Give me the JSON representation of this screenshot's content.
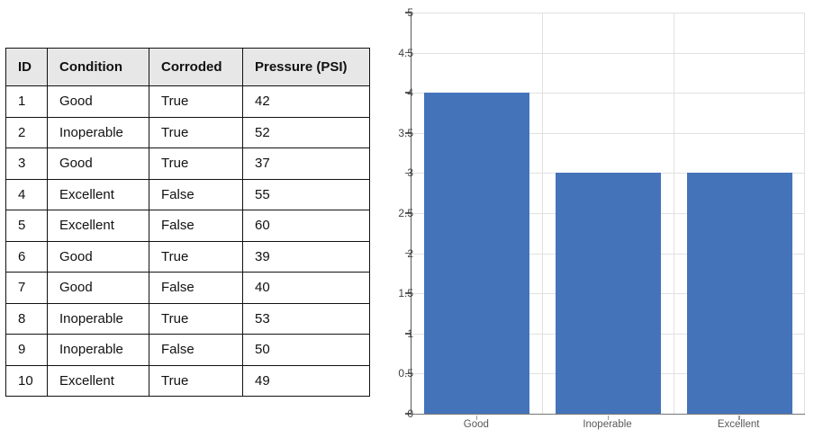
{
  "table": {
    "columns": [
      "ID",
      "Condition",
      "Corroded",
      "Pressure (PSI)"
    ],
    "rows": [
      [
        "1",
        "Good",
        "True",
        "42"
      ],
      [
        "2",
        "Inoperable",
        "True",
        "52"
      ],
      [
        "3",
        "Good",
        "True",
        "37"
      ],
      [
        "4",
        "Excellent",
        "False",
        "55"
      ],
      [
        "5",
        "Excellent",
        "False",
        "60"
      ],
      [
        "6",
        "Good",
        "True",
        "39"
      ],
      [
        "7",
        "Good",
        "False",
        "40"
      ],
      [
        "8",
        "Inoperable",
        "True",
        "53"
      ],
      [
        "9",
        "Inoperable",
        "False",
        "50"
      ],
      [
        "10",
        "Excellent",
        "True",
        "49"
      ]
    ],
    "header_bg": "#e7e7e7",
    "border_color": "#111111"
  },
  "chart_data": {
    "type": "bar",
    "categories": [
      "Good",
      "Inoperable",
      "Excellent"
    ],
    "values": [
      4,
      3,
      3
    ],
    "title": "",
    "xlabel": "",
    "ylabel": "",
    "ylim": [
      0,
      5
    ],
    "ytick_step": 0.5,
    "ytick_labels": [
      "0",
      "0.5",
      "1",
      "1.5",
      "2",
      "2.5",
      "3",
      "3.5",
      "4",
      "4.5",
      "5"
    ],
    "bar_color": "#4473ba",
    "grid": true,
    "legend": "none"
  }
}
